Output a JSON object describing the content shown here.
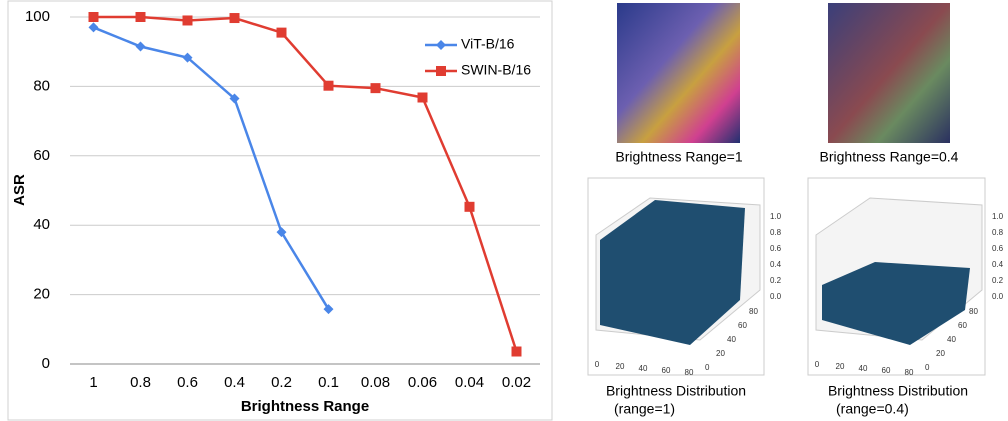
{
  "chart_data": {
    "type": "line",
    "x_label": "Brightness Range",
    "y_label": "ASR",
    "categories": [
      "1",
      "0.8",
      "0.6",
      "0.4",
      "0.2",
      "0.1",
      "0.08",
      "0.06",
      "0.04",
      "0.02"
    ],
    "series": [
      {
        "name": "ViT-B/16",
        "color": "#4a86e8",
        "marker": "diamond",
        "values": [
          97,
          91.5,
          88.3,
          76.5,
          38,
          15.8,
          null,
          null,
          null,
          null
        ]
      },
      {
        "name": "SWIN-B/16",
        "color": "#e03c31",
        "marker": "square",
        "values": [
          100,
          100,
          99,
          99.7,
          95.5,
          80.2,
          79.5,
          76.8,
          45.3,
          3.6
        ]
      }
    ],
    "ylim": [
      0,
      100
    ],
    "yticks": [
      0,
      20,
      40,
      60,
      80,
      100
    ],
    "grid": true,
    "legend": "upper right"
  },
  "panels": [
    {
      "caption": [
        "Brightness Range=1"
      ]
    },
    {
      "caption": [
        "Brightness Range=0.4"
      ]
    },
    {
      "caption": [
        "Brightness Distribution",
        "(range=1)"
      ],
      "xticks": [
        0,
        20,
        40,
        60,
        80
      ],
      "yticks": [
        0,
        20,
        40,
        60,
        80
      ],
      "zticks": [
        "0.0",
        "0.2",
        "0.4",
        "0.6",
        "0.8",
        "1.0"
      ]
    },
    {
      "caption": [
        "Brightness Distribution",
        "(range=0.4)"
      ],
      "xticks": [
        0,
        20,
        40,
        60,
        80
      ],
      "yticks": [
        0,
        20,
        40,
        60,
        80
      ],
      "zticks": [
        "0.0",
        "0.2",
        "0.4",
        "0.6",
        "0.8",
        "1.0"
      ]
    }
  ]
}
